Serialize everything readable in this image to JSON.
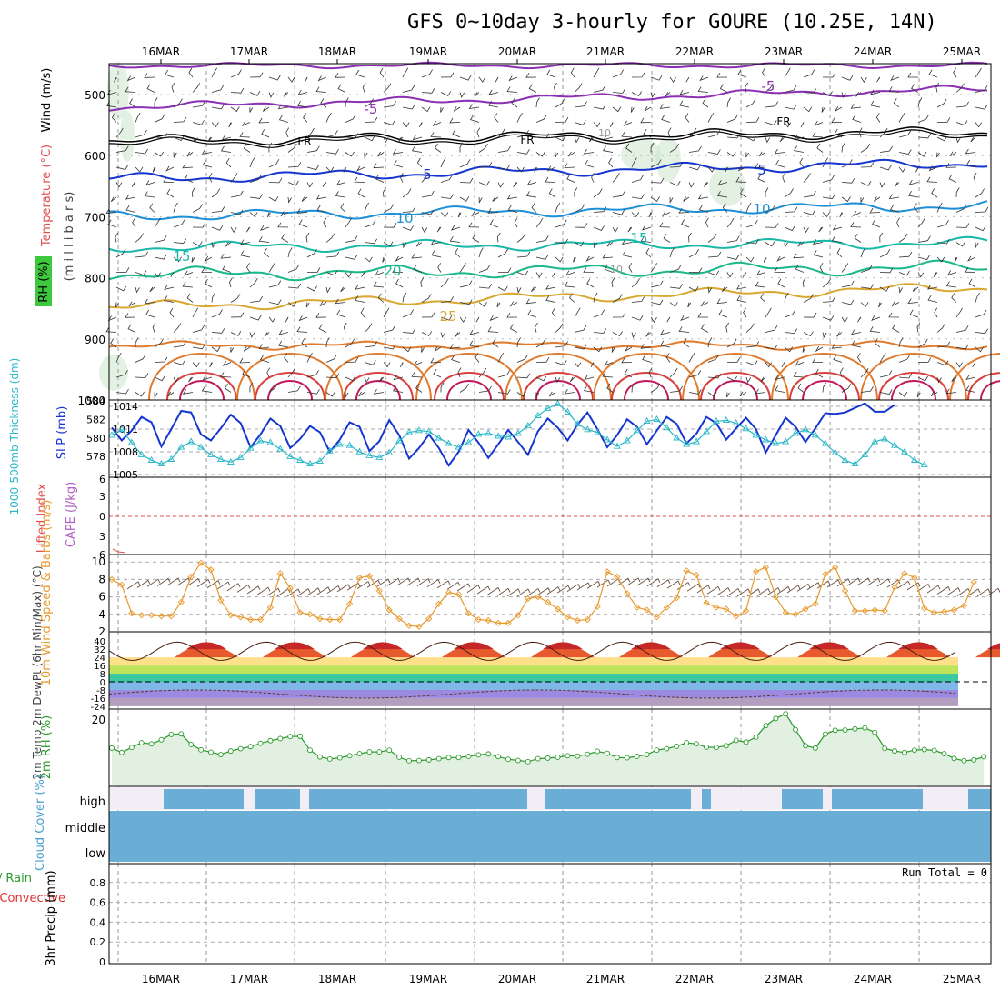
{
  "header": {
    "title": "GFS 0~10day 3-hourly for GOURE (10.25E, 14N)"
  },
  "chart_data": {
    "type": "meteogram",
    "x_axis": {
      "dates": [
        "16MAR",
        "17MAR",
        "18MAR",
        "19MAR",
        "20MAR",
        "21MAR",
        "22MAR",
        "23MAR",
        "24MAR",
        "25MAR"
      ]
    },
    "panels": {
      "upper_air": {
        "ylabels": [
          "Wind (m/s)",
          "Temperature (°C)",
          "RH (%)",
          "(m i l l i b a r s)"
        ],
        "yticks": [
          500,
          600,
          700,
          800,
          900,
          1000
        ],
        "contour_labels": [
          "-5",
          "-5",
          "FR",
          "FR",
          "FR",
          "5",
          "5",
          "10",
          "10",
          "10",
          "15",
          "15",
          "20",
          "25",
          "10"
        ]
      },
      "thickness_slp": {
        "ylabel_left": "1000-500mb Thickness (dm)",
        "ylabel_right": "SLP (mb)",
        "left_ticks": [
          578,
          580,
          582,
          584
        ],
        "right_ticks": [
          1005,
          1008,
          1011,
          1014
        ],
        "series": [
          {
            "name": "SLP (mb)",
            "color": "#1535d0",
            "values": [
              1011.2,
              1009.5,
              1010.8,
              1012.6,
              1011.9,
              1008.7,
              1011.0,
              1013.4,
              1013.2,
              1010.3,
              1009.5,
              1011.1,
              1012.9,
              1011.8,
              1008.6,
              1010.3,
              1012.4,
              1011.4,
              1008.5,
              1009.7,
              1011.4,
              1010.6,
              1008.0,
              1009.6,
              1011.9,
              1011.3,
              1008.1,
              1009.4,
              1012.2,
              1010.2,
              1007.1,
              1008.5,
              1010.3,
              1008.5,
              1006.2,
              1008.0,
              1010.9,
              1009.2,
              1007.2,
              1009.0,
              1010.9,
              1009.3,
              1007.6,
              1010.7,
              1012.4,
              1011.2,
              1009.5,
              1011.6,
              1013.2,
              1011.0,
              1008.6,
              1010.2,
              1012.3,
              1011.3,
              1009.0,
              1010.8,
              1012.6,
              1011.7,
              1009.1,
              1010.4,
              1012.6,
              1011.8,
              1009.6,
              1011.1,
              1012.5,
              1011.0,
              1007.9,
              1010.2,
              1012.5,
              1011.3,
              1009.3,
              1011.1,
              1013.1,
              1013.0,
              1013.2,
              1013.8,
              1014.4,
              1013.3,
              1013.3,
              1014.2
            ]
          },
          {
            "name": "1000-500mb Thickness (dm)",
            "color": "#2bb8c8",
            "values": [
              580.3,
              580.9,
              579.5,
              578.2,
              577.6,
              577.2,
              577.7,
              579.0,
              579.6,
              579.0,
              578.2,
              577.7,
              577.4,
              577.9,
              578.9,
              579.7,
              579.5,
              578.8,
              578.0,
              577.6,
              577.2,
              577.5,
              578.6,
              579.3,
              579.2,
              578.5,
              578.1,
              577.9,
              578.4,
              579.7,
              580.6,
              580.8,
              580.7,
              580.0,
              579.4,
              579.0,
              579.5,
              580.4,
              580.5,
              580.2,
              580.1,
              580.5,
              581.3,
              582.4,
              583.2,
              583.7,
              582.8,
              581.5,
              580.9,
              580.6,
              579.8,
              579.1,
              579.7,
              580.8,
              581.8,
              582.0,
              581.1,
              580.0,
              579.3,
              579.6,
              580.7,
              581.8,
              581.9,
              581.6,
              581.0,
              580.3,
              579.8,
              579.4,
              579.6,
              580.5,
              580.9,
              580.3,
              579.4,
              578.4,
              577.6,
              577.2,
              578.2,
              579.6,
              579.9,
              579.2,
              578.5,
              577.6,
              577.1
            ]
          }
        ]
      },
      "stability": {
        "ylabel_left": "Lifted Index",
        "ylabel_right": "CAPE (J/kg)",
        "yticks": [
          "6",
          "3",
          "0",
          "3",
          "6"
        ]
      },
      "wind10m": {
        "ylabel": "10m Wind Speed & Barbs (m/s)",
        "yticks": [
          2,
          4,
          6,
          8,
          10
        ],
        "series": [
          {
            "name": "10m Wind Speed",
            "color": "#e89a2e",
            "values": [
              8.0,
              7.4,
              4.1,
              3.9,
              3.9,
              3.8,
              3.8,
              5.4,
              8.3,
              9.9,
              9.1,
              5.6,
              3.9,
              3.7,
              3.4,
              3.4,
              4.8,
              8.7,
              7.0,
              4.2,
              4.0,
              3.5,
              3.4,
              3.4,
              5.2,
              8.2,
              8.4,
              6.7,
              4.5,
              3.5,
              2.7,
              2.6,
              3.5,
              5.2,
              6.5,
              6.3,
              4.1,
              3.4,
              3.3,
              3.0,
              3.0,
              3.9,
              5.8,
              6.0,
              5.4,
              4.6,
              3.7,
              3.3,
              3.4,
              4.9,
              8.9,
              8.3,
              6.4,
              4.8,
              4.5,
              3.7,
              4.8,
              5.9,
              9.0,
              8.5,
              5.3,
              4.8,
              4.6,
              3.8,
              4.4,
              8.9,
              9.4,
              6.0,
              4.2,
              4.0,
              4.6,
              5.2,
              8.6,
              9.4,
              6.7,
              4.4,
              4.4,
              4.5,
              4.4,
              7.1,
              8.7,
              8.2,
              4.7,
              4.2,
              4.3,
              4.5,
              5.0,
              7.7
            ]
          }
        ]
      },
      "temperature2m": {
        "ylabel": "2m Temp 2m DewPt (6hr Min/Max) (°C)",
        "yticks": [
          40,
          32,
          24,
          16,
          8,
          0,
          -8,
          -16,
          -24
        ],
        "temperature_range": [
          22,
          40
        ],
        "dewpoint_range": [
          -19,
          -5
        ]
      },
      "rh2m": {
        "ylabel": "2m RH (%)",
        "yticks": [
          20
        ],
        "series": [
          {
            "name": "2m RH",
            "color": "#2a9a2a",
            "values": [
              10.5,
              9.0,
              10.7,
              12.3,
              11.9,
              13.3,
              15.1,
              15.3,
              11.7,
              9.9,
              9.1,
              8.3,
              9.5,
              10.3,
              11.0,
              12.1,
              13.0,
              13.7,
              14.4,
              14.5,
              9.8,
              7.5,
              6.8,
              7.2,
              7.9,
              8.6,
              9.2,
              9.2,
              9.8,
              7.4,
              6.2,
              6.3,
              6.5,
              6.9,
              7.3,
              7.3,
              7.7,
              8.2,
              8.5,
              7.6,
              6.7,
              6.3,
              5.9,
              6.9,
              7.1,
              7.4,
              7.9,
              7.8,
              8.4,
              9.4,
              8.7,
              7.3,
              7.2,
              7.7,
              8.3,
              9.8,
              10.3,
              11.1,
              12.3,
              11.9,
              10.8,
              10.7,
              11.3,
              13.1,
              12.5,
              14.2,
              18.1,
              20.5,
              22.1,
              16.7,
              11.3,
              10.5,
              15.2,
              16.5,
              16.6,
              17.0,
              17.3,
              15.8,
              10.4,
              9.5,
              9.0,
              9.8,
              10.0,
              9.7,
              8.6,
              7.0,
              6.2,
              6.5,
              7.6,
              8.6,
              9.1,
              9.4,
              11.6
            ]
          }
        ]
      },
      "cloud_cover": {
        "ylabel": "Cloud Cover (%)",
        "levels": [
          "high",
          "middle",
          "low"
        ]
      },
      "precip": {
        "ylabel": "3hr Precip (mm)",
        "legend": [
          "Total / Rain",
          "Convective"
        ],
        "yticks": [
          0,
          0.2,
          0.4,
          0.6,
          0.8
        ],
        "run_total": "Run Total = 0"
      }
    }
  }
}
